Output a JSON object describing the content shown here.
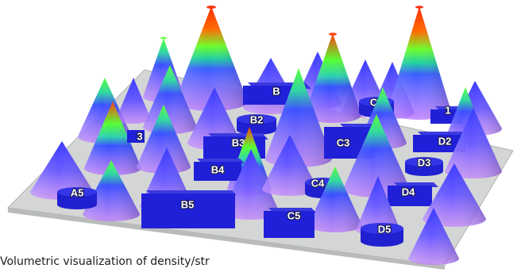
{
  "labels": {
    "A3": "3",
    "A5": "A5",
    "B": "B",
    "B2": "B2",
    "B3": "B3",
    "B4": "B4",
    "B5": "B5",
    "C1": "C1",
    "C3": "C3",
    "C4": "C4",
    "C5": "C5",
    "D1": "1",
    "D2": "D2",
    "D3": "D3",
    "D4": "D4",
    "D5": "D5"
  },
  "caption": "Volumetric visualization of density/str"
}
